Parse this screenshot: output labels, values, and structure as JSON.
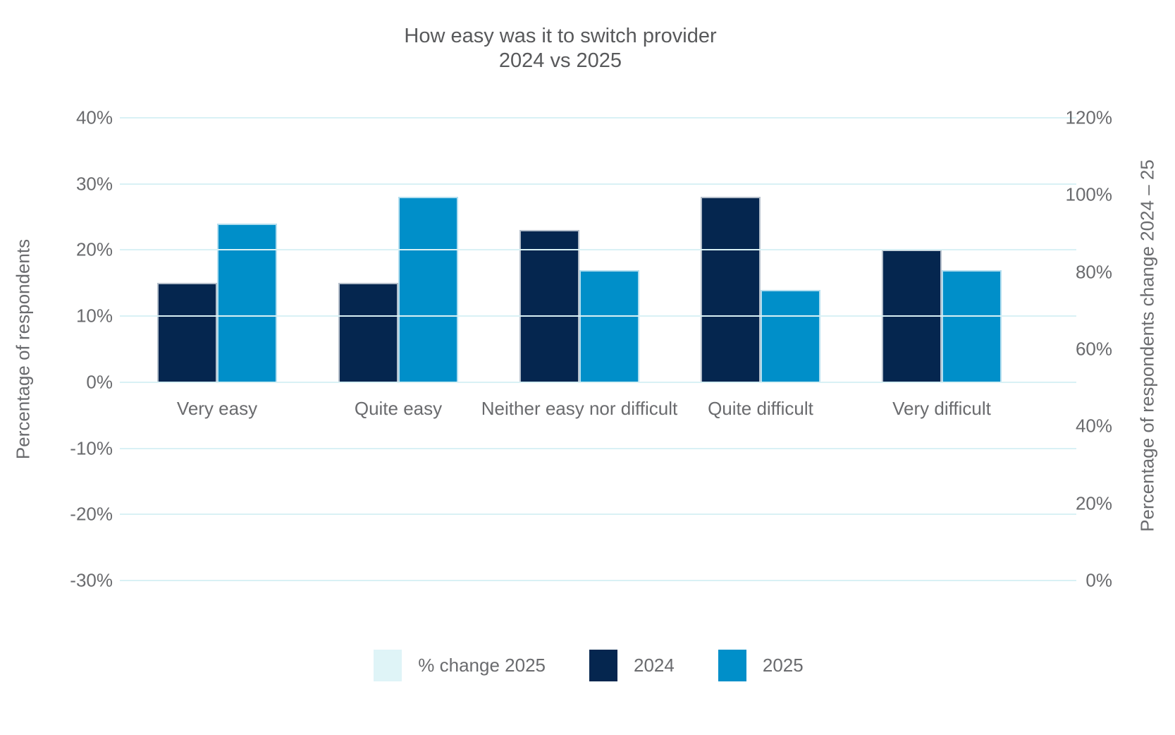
{
  "chart_data": {
    "type": "bar",
    "title_line1": "How easy was it to switch provider",
    "title_line2": "2024 vs 2025",
    "categories": [
      "Very easy",
      "Quite easy",
      "Neither easy nor difficult",
      "Quite difficult",
      "Very difficult"
    ],
    "series": [
      {
        "name": "2024",
        "color": "#05264f",
        "axis": "left",
        "values": [
          15,
          15,
          23,
          28,
          20
        ]
      },
      {
        "name": "2025",
        "color": "#008fc9",
        "axis": "left",
        "values": [
          24,
          28,
          17,
          14,
          17
        ]
      }
    ],
    "legend": [
      {
        "label": "% change 2025",
        "color": "#dff4f7"
      },
      {
        "label": "2024",
        "color": "#05264f"
      },
      {
        "label": "2025",
        "color": "#008fc9"
      }
    ],
    "left_axis": {
      "label": "Percentage of respondents",
      "ticks": [
        "40%",
        "30%",
        "20%",
        "10%",
        "0%",
        "-10%",
        "-20%",
        "-30%"
      ],
      "range": [
        -30,
        40
      ]
    },
    "right_axis": {
      "label": "Percentage of respondents change 2024 – 25",
      "ticks": [
        "120%",
        "100%",
        "80%",
        "60%",
        "40%",
        "20%",
        "0%"
      ],
      "range": [
        0,
        120
      ]
    },
    "grid": true,
    "legend_position": "bottom",
    "colors": {
      "gridline": "#d9f1f5",
      "tick_text": "#6a6b6e",
      "title_text": "#58595b",
      "background": "#ffffff"
    }
  }
}
